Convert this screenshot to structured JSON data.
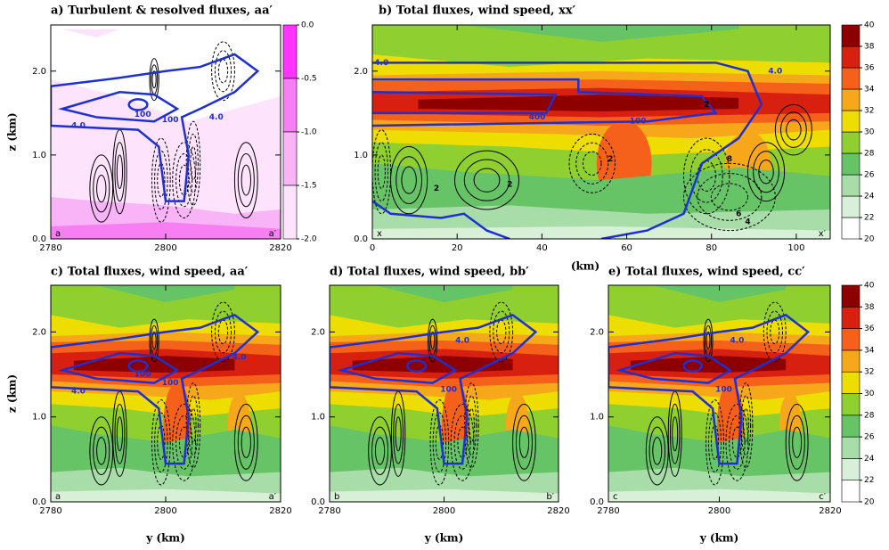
{
  "chart_data": [
    {
      "type": "contour",
      "title": "a) Turbulent & resolved fluxes, aa′",
      "ylabel": "z (km)",
      "xlim": [
        2780,
        2820
      ],
      "xticks": [
        2780,
        2800,
        2820
      ],
      "ylim": [
        0,
        2.55
      ],
      "yticks": [
        {
          "value": 0,
          "label": "0.0"
        },
        {
          "value": 1,
          "label": "1.0"
        },
        {
          "value": 2,
          "label": "2.0"
        }
      ],
      "section_ends": [
        "a",
        "a′"
      ],
      "contour_color": "#1f2fd0",
      "contour_labels": [
        "4.0",
        "100",
        "100",
        "4.0"
      ],
      "colorbar": {
        "clim": [
          -2,
          0
        ],
        "ticks": [
          {
            "value": 0,
            "label": "0.0"
          },
          {
            "value": -0.5,
            "label": "-0.5"
          },
          {
            "value": -1,
            "label": "-1.0"
          },
          {
            "value": -1.5,
            "label": "-1.5"
          },
          {
            "value": -2,
            "label": "-2.0"
          }
        ],
        "colors": [
          "#ff33ff",
          "#f77ff3",
          "#f9b4f7",
          "#fde4fc"
        ]
      }
    },
    {
      "type": "contour",
      "title": "b) Total fluxes, wind speed, xx′",
      "xlabel": "(km)",
      "xlim": [
        0,
        108
      ],
      "xticks": [
        0,
        20,
        40,
        60,
        80,
        100
      ],
      "ylim": [
        0,
        2.55
      ],
      "yticks": [
        {
          "value": 0,
          "label": "0.0"
        },
        {
          "value": 1,
          "label": "1.0"
        },
        {
          "value": 2,
          "label": "2.0"
        }
      ],
      "section_ends": [
        "x",
        "x′"
      ],
      "contour_color": "#1f2fd0",
      "contour_labels": [
        "4.0",
        "4.0",
        "400",
        "100",
        "2",
        "2",
        "2",
        "8",
        "6",
        "4",
        "2"
      ],
      "colorbar": {
        "clim": [
          20,
          40
        ],
        "ticks": [
          20,
          22,
          24,
          26,
          28,
          30,
          32,
          34,
          36,
          38,
          40
        ],
        "colors": [
          "#ffffff",
          "#d8f0d8",
          "#a8dca8",
          "#66c466",
          "#8fcf2f",
          "#eedd00",
          "#f6a81a",
          "#f5601a",
          "#d82010",
          "#8e0000"
        ]
      }
    },
    {
      "type": "contour",
      "title": "c) Total fluxes, wind speed, aa′",
      "xlabel": "y (km)",
      "ylabel": "z (km)",
      "xlim": [
        2780,
        2820
      ],
      "xticks": [
        2780,
        2800,
        2820
      ],
      "ylim": [
        0,
        2.55
      ],
      "yticks": [
        {
          "value": 0,
          "label": "0.0"
        },
        {
          "value": 1,
          "label": "1.0"
        },
        {
          "value": 2,
          "label": "2.0"
        }
      ],
      "section_ends": [
        "a",
        "a′"
      ],
      "contour_color": "#1f2fd0",
      "contour_labels": [
        "4.0",
        "100",
        "100",
        "4.0"
      ]
    },
    {
      "type": "contour",
      "title": "d) Total fluxes, wind speed, bb′",
      "xlabel": "y (km)",
      "xlim": [
        2780,
        2820
      ],
      "xticks": [
        2780,
        2800,
        2820
      ],
      "ylim": [
        0,
        2.55
      ],
      "yticks": [
        {
          "value": 0,
          "label": "0.0"
        },
        {
          "value": 1,
          "label": "1.0"
        },
        {
          "value": 2,
          "label": "2.0"
        }
      ],
      "section_ends": [
        "b",
        "b′"
      ],
      "contour_color": "#1f2fd0",
      "contour_labels": [
        "4.0",
        "100"
      ]
    },
    {
      "type": "contour",
      "title": "e) Total fluxes, wind speed, cc′",
      "xlabel": "y (km)",
      "xlim": [
        2780,
        2820
      ],
      "xticks": [
        2780,
        2800,
        2820
      ],
      "ylim": [
        0,
        2.55
      ],
      "yticks": [
        {
          "value": 0,
          "label": "0.0"
        },
        {
          "value": 1,
          "label": "1.0"
        },
        {
          "value": 2,
          "label": "2.0"
        }
      ],
      "section_ends": [
        "c",
        "c′"
      ],
      "contour_color": "#1f2fd0",
      "contour_labels": [
        "4.0",
        "100"
      ],
      "colorbar": {
        "clim": [
          20,
          40
        ],
        "ticks": [
          20,
          22,
          24,
          26,
          28,
          30,
          32,
          34,
          36,
          38,
          40
        ],
        "colors": [
          "#ffffff",
          "#d8f0d8",
          "#a8dca8",
          "#66c466",
          "#8fcf2f",
          "#eedd00",
          "#f6a81a",
          "#f5601a",
          "#d82010",
          "#8e0000"
        ]
      }
    }
  ]
}
